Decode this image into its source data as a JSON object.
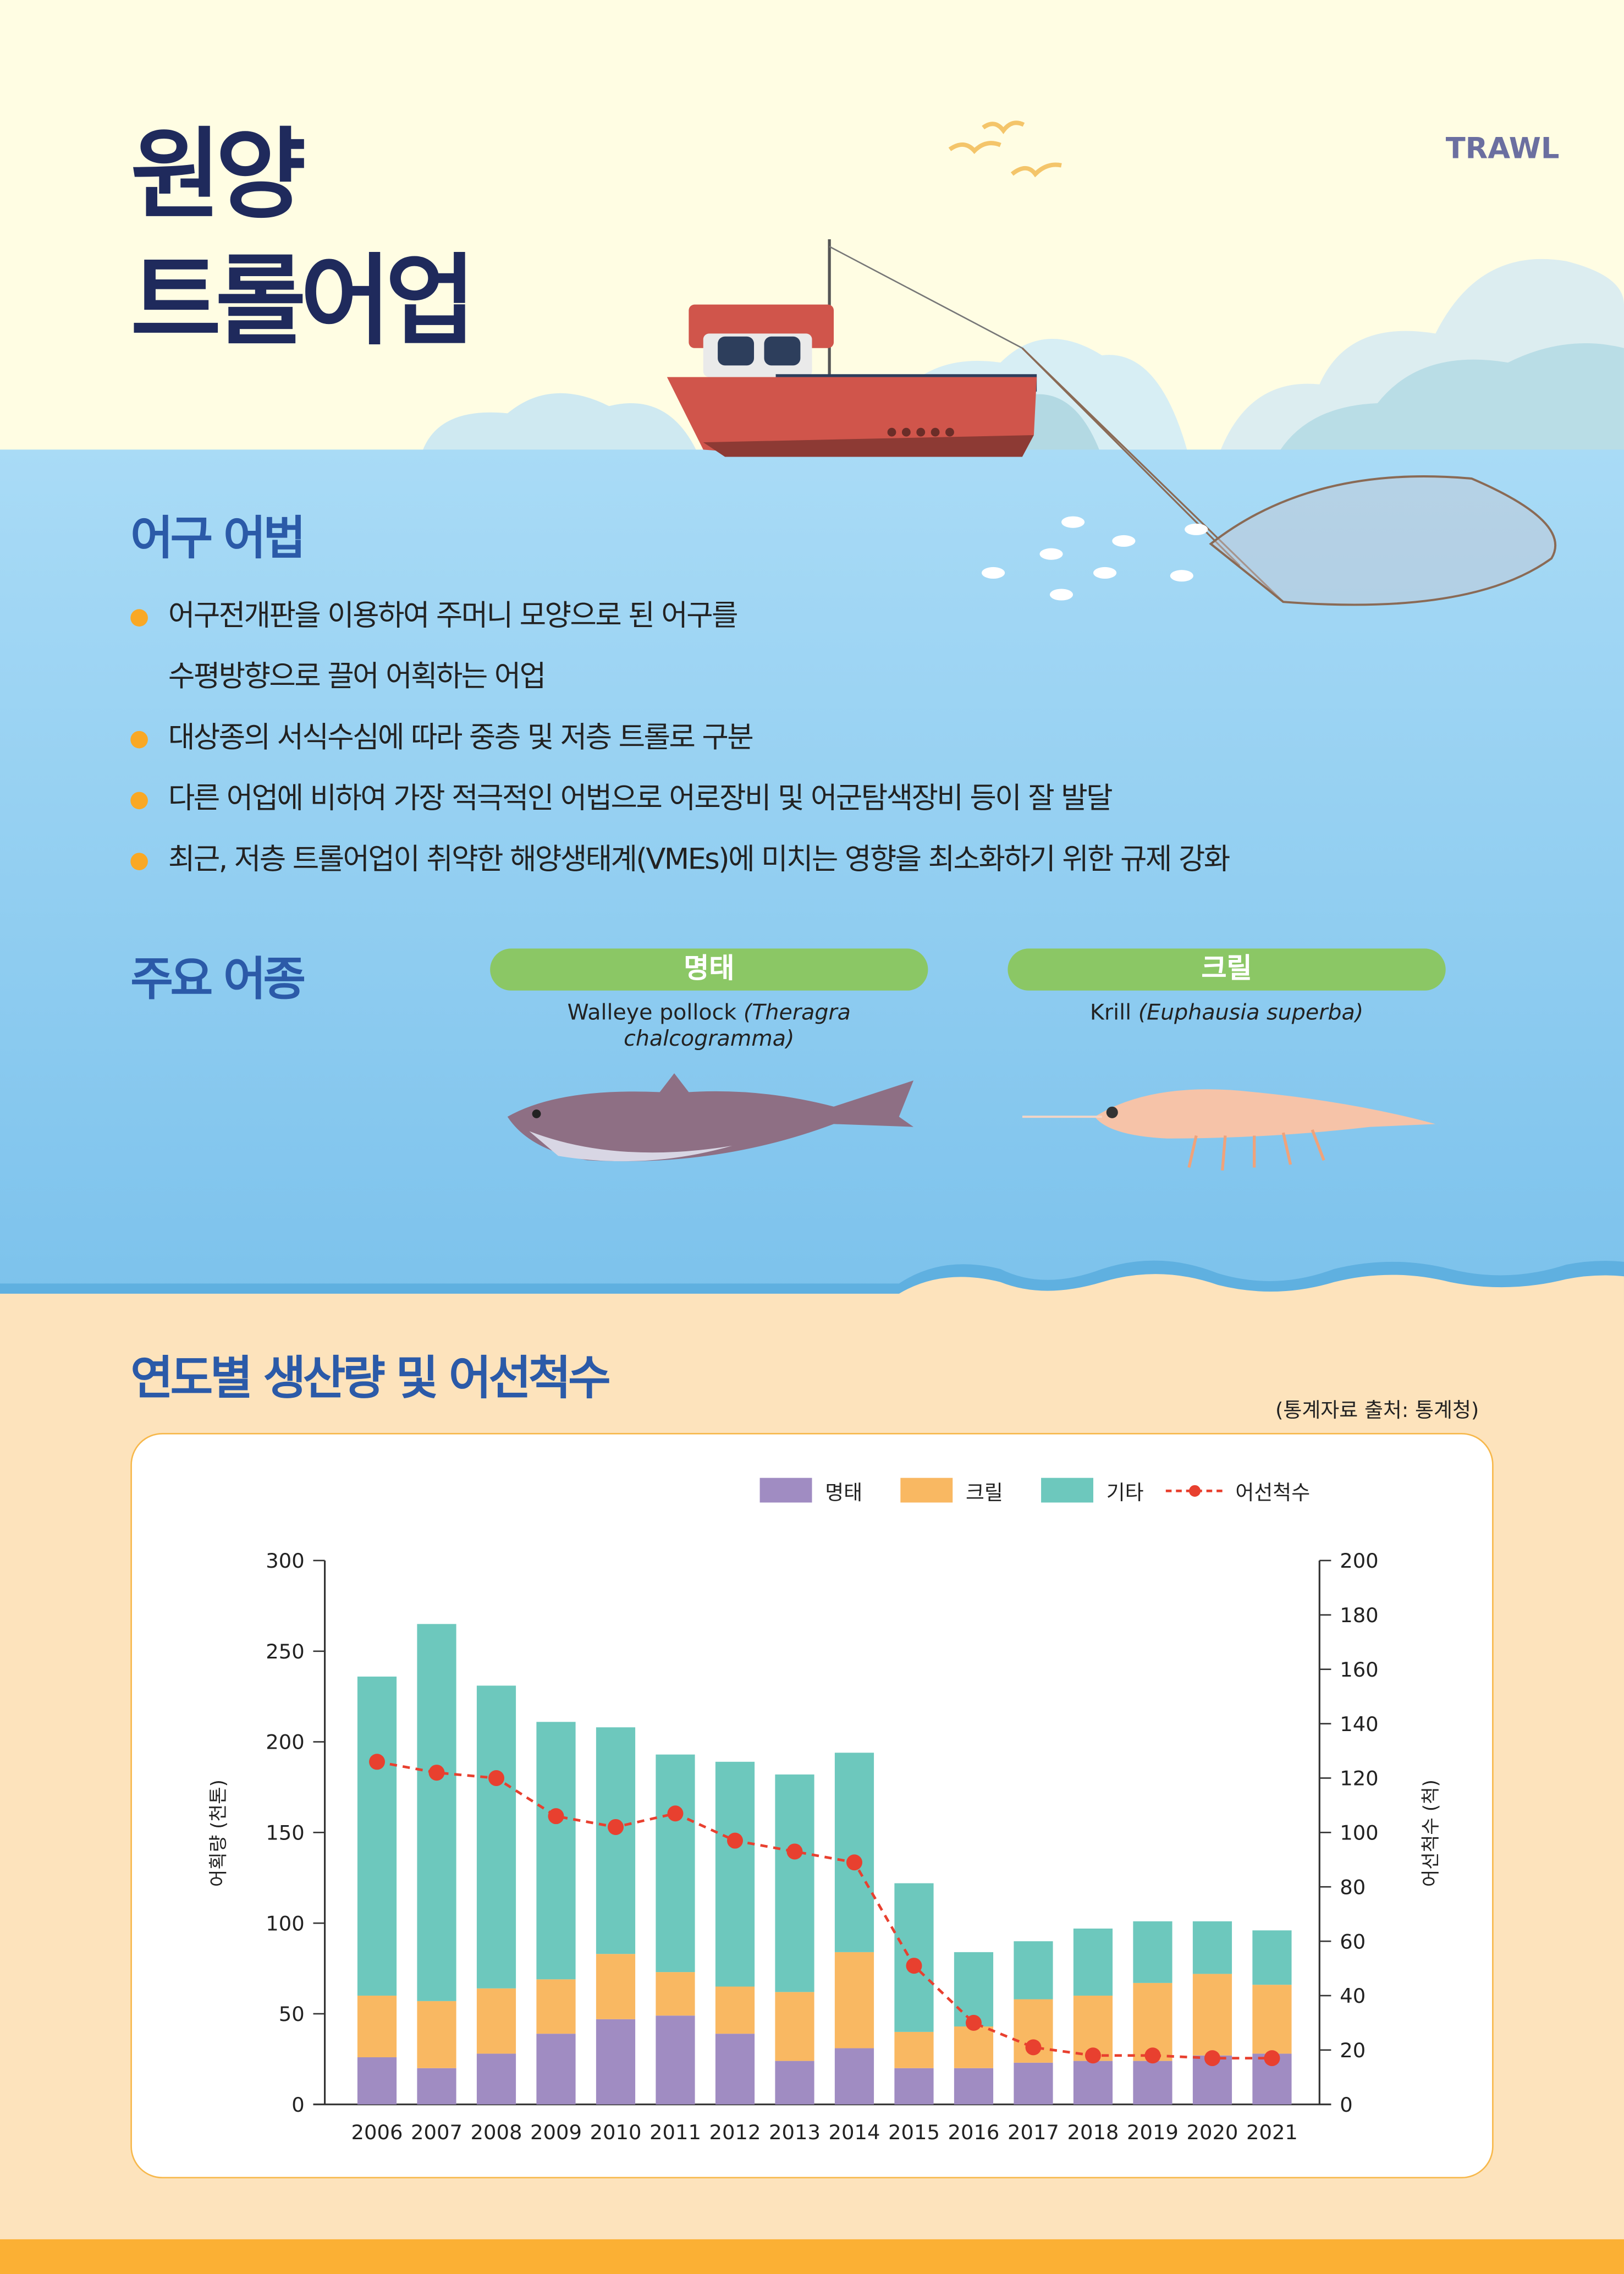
{
  "header": {
    "title_line1": "원양",
    "title_line2": "트롤어업",
    "tag": "TRAWL"
  },
  "gear": {
    "heading": "어구 어법",
    "bullets": [
      {
        "lines": [
          "어구전개판을 이용하여 주머니 모양으로 된 어구를",
          "수평방향으로 끌어 어획하는 어업"
        ]
      },
      {
        "lines": [
          "대상종의 서식수심에 따라 중층 및 저층 트롤로 구분"
        ]
      },
      {
        "lines": [
          "다른 어업에 비하여 가장 적극적인 어법으로 어로장비 및 어군탐색장비 등이 잘 발달"
        ]
      },
      {
        "lines": [
          "최근, 저층 트롤어업이 취약한 해양생태계(VMEs)에 미치는 영향을 최소화하기 위한 규제 강화"
        ]
      }
    ]
  },
  "species": {
    "heading": "주요 어종",
    "items": [
      {
        "name": "명태",
        "common": "Walleye pollock",
        "scientific": "(Theragra chalcogramma)"
      },
      {
        "name": "크릴",
        "common": "Krill",
        "scientific": "(Euphausia superba)"
      }
    ]
  },
  "production": {
    "heading": "연도별 생산량 및 어선척수",
    "source": "(통계자료 출처: 통계청)"
  },
  "chart_data": {
    "type": "bar",
    "stacked": true,
    "categories": [
      "2006",
      "2007",
      "2008",
      "2009",
      "2010",
      "2011",
      "2012",
      "2013",
      "2014",
      "2015",
      "2016",
      "2017",
      "2018",
      "2019",
      "2020",
      "2021"
    ],
    "series": [
      {
        "name": "명태",
        "color": "#a08cc2",
        "axis": "left",
        "values": [
          26,
          20,
          28,
          39,
          47,
          49,
          39,
          24,
          31,
          20,
          20,
          23,
          24,
          24,
          27,
          28
        ]
      },
      {
        "name": "크릴",
        "color": "#f9b862",
        "axis": "left",
        "values": [
          34,
          37,
          36,
          30,
          36,
          24,
          26,
          38,
          53,
          20,
          23,
          35,
          36,
          43,
          45,
          38
        ]
      },
      {
        "name": "기타",
        "color": "#6dc8bd",
        "axis": "left",
        "values": [
          176,
          208,
          167,
          142,
          125,
          120,
          124,
          120,
          110,
          82,
          41,
          32,
          37,
          34,
          29,
          30
        ]
      },
      {
        "name": "어선척수",
        "type": "line",
        "color": "#e8402f",
        "axis": "right",
        "values": [
          126,
          122,
          120,
          106,
          102,
          107,
          97,
          93,
          89,
          51,
          30,
          21,
          18,
          18,
          17,
          17
        ]
      }
    ],
    "ylabel": "어획량 (천톤)",
    "y2label": "어선척수 (척)",
    "ylim": [
      0,
      300
    ],
    "y2lim": [
      0,
      200
    ],
    "yticks": [
      "0",
      "50",
      "100",
      "150",
      "200",
      "250",
      "300"
    ],
    "y2ticks": [
      "0",
      "20",
      "40",
      "60",
      "80",
      "100",
      "120",
      "140",
      "160",
      "180",
      "200"
    ],
    "legend": "top-right",
    "grid": false
  }
}
